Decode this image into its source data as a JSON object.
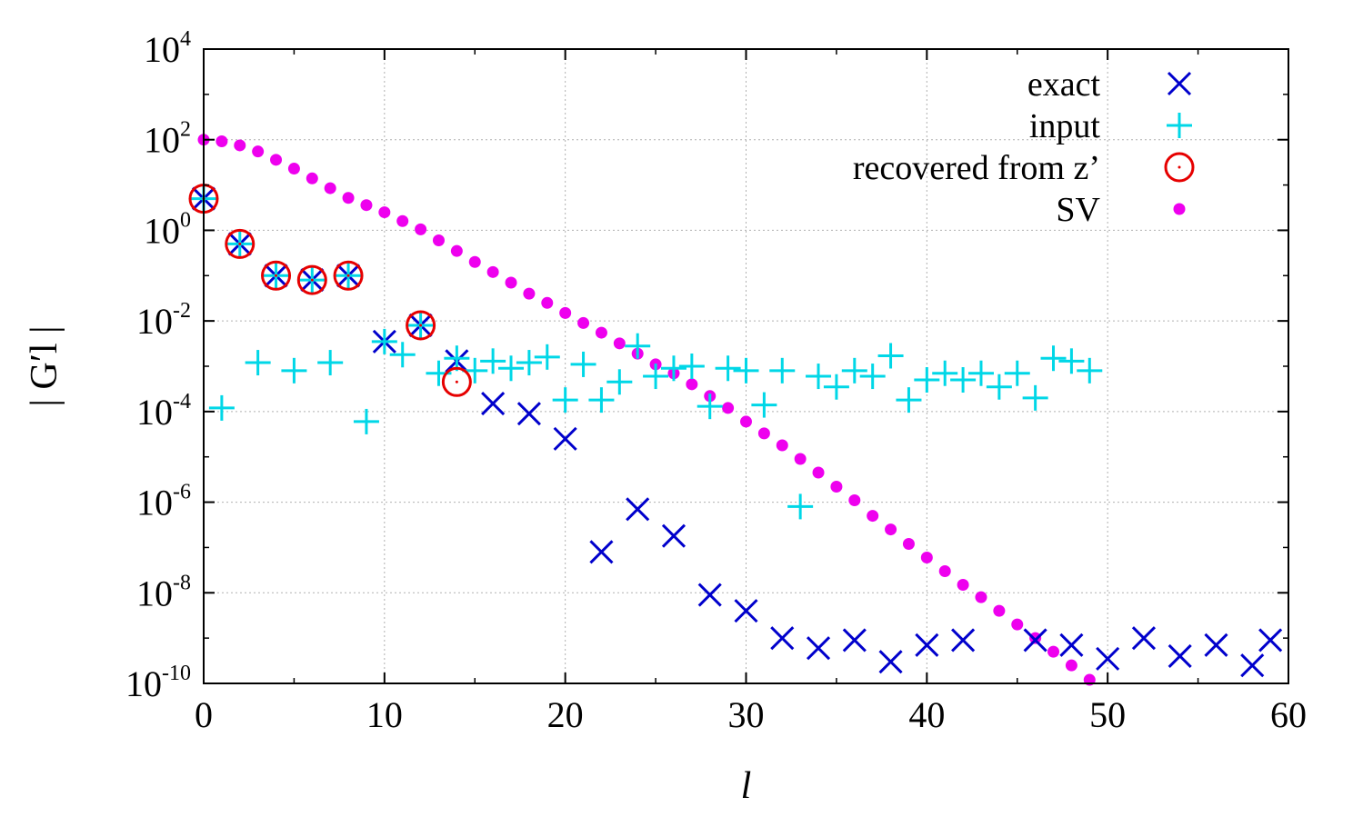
{
  "chart_data": {
    "type": "scatter",
    "title": "",
    "xlabel": "l",
    "ylabel": "| G′l |",
    "xlim": [
      0,
      60
    ],
    "ylim": [
      1e-10,
      10000.0
    ],
    "y_scale": "log",
    "grid": true,
    "legend_position": "top-right",
    "x_ticks": [
      "0",
      "10",
      "20",
      "30",
      "40",
      "50",
      "60"
    ],
    "x_tick_values": [
      0,
      10,
      20,
      30,
      40,
      50,
      60
    ],
    "y_ticks": [
      {
        "base": "10",
        "exp": "4",
        "value": 10000.0
      },
      {
        "base": "10",
        "exp": "2",
        "value": 100.0
      },
      {
        "base": "10",
        "exp": "0",
        "value": 1
      },
      {
        "base": "10",
        "exp": "-2",
        "value": 0.01
      },
      {
        "base": "10",
        "exp": "-4",
        "value": 0.0001
      },
      {
        "base": "10",
        "exp": "-6",
        "value": 1e-06
      },
      {
        "base": "10",
        "exp": "-8",
        "value": 1e-08
      },
      {
        "base": "10",
        "exp": "-10",
        "value": 1e-10
      }
    ],
    "series": [
      {
        "name": "exact",
        "marker": "x",
        "color": "#0000cc",
        "points": [
          [
            0,
            5.0
          ],
          [
            2,
            0.5
          ],
          [
            4,
            0.1
          ],
          [
            6,
            0.08
          ],
          [
            8,
            0.1
          ],
          [
            10,
            0.0035
          ],
          [
            12,
            0.008
          ],
          [
            14,
            0.0013
          ],
          [
            16,
            0.00015
          ],
          [
            18,
            9e-05
          ],
          [
            20,
            2.5e-05
          ],
          [
            22,
            8e-08
          ],
          [
            24,
            7e-07
          ],
          [
            26,
            1.8e-07
          ],
          [
            28,
            9e-09
          ],
          [
            30,
            4e-09
          ],
          [
            32,
            1e-09
          ],
          [
            34,
            6e-10
          ],
          [
            36,
            9e-10
          ],
          [
            38,
            3e-10
          ],
          [
            40,
            7e-10
          ],
          [
            42,
            9e-10
          ],
          [
            46,
            9e-10
          ],
          [
            48,
            7e-10
          ],
          [
            50,
            3.5e-10
          ],
          [
            52,
            1e-09
          ],
          [
            54,
            4e-10
          ],
          [
            56,
            7e-10
          ],
          [
            58,
            2.5e-10
          ],
          [
            59,
            9e-10
          ]
        ]
      },
      {
        "name": "input",
        "marker": "+",
        "color": "#00d7e7",
        "points": [
          [
            0,
            5.0
          ],
          [
            1,
            0.00012
          ],
          [
            2,
            0.5
          ],
          [
            3,
            0.0012
          ],
          [
            4,
            0.1
          ],
          [
            5,
            0.0008
          ],
          [
            6,
            0.08
          ],
          [
            7,
            0.0012
          ],
          [
            8,
            0.1
          ],
          [
            9,
            6e-05
          ],
          [
            10,
            0.0035
          ],
          [
            11,
            0.0018
          ],
          [
            12,
            0.008
          ],
          [
            13,
            0.0007
          ],
          [
            14,
            0.0015
          ],
          [
            15,
            0.0008
          ],
          [
            16,
            0.0013
          ],
          [
            17,
            0.0009
          ],
          [
            18,
            0.0012
          ],
          [
            19,
            0.0016
          ],
          [
            20,
            0.00018
          ],
          [
            21,
            0.0011
          ],
          [
            22,
            0.00018
          ],
          [
            23,
            0.00045
          ],
          [
            24,
            0.0028
          ],
          [
            25,
            0.0006
          ],
          [
            26,
            0.0009
          ],
          [
            27,
            0.001
          ],
          [
            28,
            0.00013
          ],
          [
            29,
            0.0009
          ],
          [
            30,
            0.0008
          ],
          [
            31,
            0.00014
          ],
          [
            32,
            0.0008
          ],
          [
            33,
            8e-07
          ],
          [
            34,
            0.0006
          ],
          [
            35,
            0.00035
          ],
          [
            36,
            0.0008
          ],
          [
            37,
            0.0006
          ],
          [
            38,
            0.0017
          ],
          [
            39,
            0.00018
          ],
          [
            40,
            0.0005
          ],
          [
            41,
            0.0007
          ],
          [
            42,
            0.0005
          ],
          [
            43,
            0.0007
          ],
          [
            44,
            0.00035
          ],
          [
            45,
            0.0007
          ],
          [
            46,
            0.0002
          ],
          [
            47,
            0.0015
          ],
          [
            48,
            0.0013
          ],
          [
            49,
            0.0008
          ]
        ]
      },
      {
        "name": "recovered from z’",
        "marker": "circle",
        "color": "#e60000",
        "points": [
          [
            0,
            5.0
          ],
          [
            2,
            0.5
          ],
          [
            4,
            0.1
          ],
          [
            6,
            0.08
          ],
          [
            8,
            0.1
          ],
          [
            12,
            0.008
          ],
          [
            14,
            0.00045
          ]
        ]
      },
      {
        "name": "SV",
        "marker": "dot",
        "color": "#ee00ee",
        "points": [
          [
            0,
            100
          ],
          [
            1,
            92
          ],
          [
            2,
            75
          ],
          [
            3,
            55
          ],
          [
            4,
            36
          ],
          [
            5,
            23
          ],
          [
            6,
            14
          ],
          [
            7,
            8.5
          ],
          [
            8,
            5.2
          ],
          [
            9,
            3.6
          ],
          [
            10,
            2.5
          ],
          [
            11,
            1.6
          ],
          [
            12,
            1.05
          ],
          [
            13,
            0.6
          ],
          [
            14,
            0.35
          ],
          [
            15,
            0.2
          ],
          [
            16,
            0.12
          ],
          [
            17,
            0.07
          ],
          [
            18,
            0.04
          ],
          [
            19,
            0.025
          ],
          [
            20,
            0.015
          ],
          [
            21,
            0.009
          ],
          [
            22,
            0.0055
          ],
          [
            23,
            0.0032
          ],
          [
            24,
            0.0019
          ],
          [
            25,
            0.0011
          ],
          [
            26,
            0.0007
          ],
          [
            27,
            0.0004
          ],
          [
            28,
            0.00022
          ],
          [
            29,
            0.00012
          ],
          [
            30,
            6e-05
          ],
          [
            31,
            3.3e-05
          ],
          [
            32,
            1.8e-05
          ],
          [
            33,
            9e-06
          ],
          [
            34,
            4.5e-06
          ],
          [
            35,
            2.2e-06
          ],
          [
            36,
            1.1e-06
          ],
          [
            37,
            5e-07
          ],
          [
            38,
            2.5e-07
          ],
          [
            39,
            1.2e-07
          ],
          [
            40,
            6e-08
          ],
          [
            41,
            3e-08
          ],
          [
            42,
            1.5e-08
          ],
          [
            43,
            8e-09
          ],
          [
            44,
            4e-09
          ],
          [
            45,
            2e-09
          ],
          [
            46,
            1e-09
          ],
          [
            47,
            5e-10
          ],
          [
            48,
            2.5e-10
          ],
          [
            49,
            1.2e-10
          ]
        ]
      }
    ]
  }
}
